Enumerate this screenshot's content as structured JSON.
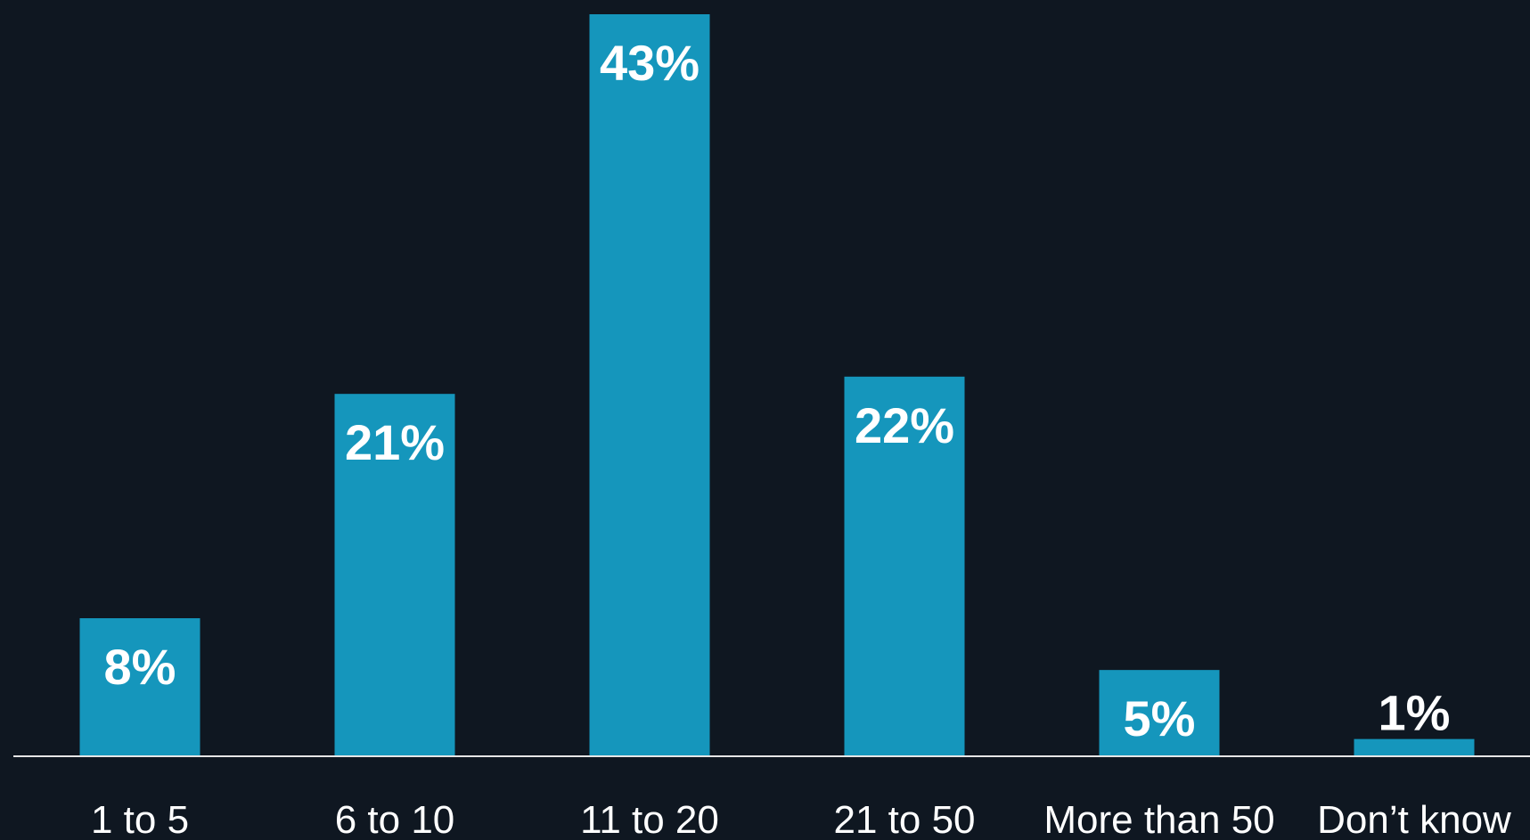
{
  "chart_data": {
    "type": "bar",
    "categories": [
      "1 to 5",
      "6 to 10",
      "11 to 20",
      "21 to 50",
      "More than 50",
      "Don’t know"
    ],
    "values": [
      8,
      21,
      43,
      22,
      5,
      1
    ],
    "value_labels": [
      "8%",
      "21%",
      "43%",
      "22%",
      "5%",
      "1%"
    ],
    "title": "",
    "xlabel": "",
    "ylabel": "",
    "ylim": [
      0,
      43
    ],
    "grid": false,
    "colors": {
      "background": "#0f1721",
      "bar": "#1596bc",
      "axis": "#e6e6e6",
      "text": "#ffffff"
    }
  }
}
